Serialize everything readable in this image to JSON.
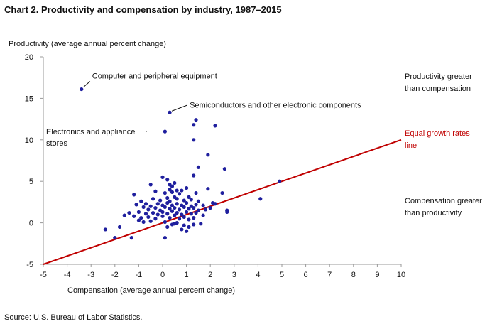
{
  "title": "Chart 2. Productivity and compensation by industry, 1987–2015",
  "source": "Source: U.S. Bureau of Labor Statistics.",
  "colors": {
    "points": "#1f1f9e",
    "line": "#c00000",
    "axis": "#999999",
    "text": "#111111"
  },
  "chart_data": {
    "type": "scatter",
    "title": "Chart 2. Productivity and compensation by industry, 1987–2015",
    "xlabel": "Compensation (average annual percent change)",
    "ylabel": "Productivity (average annual percent change)",
    "xlim": [
      -5,
      10
    ],
    "ylim": [
      -5,
      20
    ],
    "xticks": [
      -5,
      -4,
      -3,
      -2,
      -1,
      0,
      1,
      2,
      3,
      4,
      5,
      6,
      7,
      8,
      9,
      10
    ],
    "yticks": [
      -5,
      0,
      5,
      10,
      15,
      20
    ],
    "grid": false,
    "reference_line": {
      "from": [
        -5,
        -5
      ],
      "to": [
        10,
        10
      ]
    },
    "annotations": [
      {
        "text": "Computer  and peripheral equipment",
        "point": [
          -3.4,
          16.1
        ]
      },
      {
        "text": "Semiconductors and other electronic components",
        "point": [
          0.3,
          13.3
        ]
      },
      {
        "text": "Electronics and appliance",
        "point": [
          0.1,
          11.0
        ]
      },
      {
        "text": "stores",
        "point": [
          0.1,
          11.0
        ]
      }
    ],
    "side_labels": {
      "upper": [
        "Productivity greater",
        "than compensation"
      ],
      "line": [
        "Equal growth rates",
        "line"
      ],
      "lower": [
        "Compensation greater",
        "than productivity"
      ]
    },
    "series": [
      {
        "points": [
          [
            -3.4,
            16.1
          ],
          [
            0.3,
            13.3
          ],
          [
            0.1,
            11.0
          ],
          [
            1.4,
            12.4
          ],
          [
            1.3,
            11.8
          ],
          [
            2.2,
            11.7
          ],
          [
            1.3,
            10.0
          ],
          [
            1.9,
            8.2
          ],
          [
            2.6,
            6.5
          ],
          [
            1.5,
            6.7
          ],
          [
            1.3,
            5.7
          ],
          [
            4.9,
            5.0
          ],
          [
            0.0,
            5.5
          ],
          [
            0.2,
            5.2
          ],
          [
            0.3,
            4.6
          ],
          [
            0.4,
            4.4
          ],
          [
            0.5,
            4.8
          ],
          [
            -0.5,
            4.6
          ],
          [
            0.6,
            3.9
          ],
          [
            0.3,
            4.0
          ],
          [
            1.0,
            4.2
          ],
          [
            1.9,
            4.1
          ],
          [
            2.5,
            3.6
          ],
          [
            4.1,
            2.9
          ],
          [
            -1.2,
            3.4
          ],
          [
            -0.3,
            3.8
          ],
          [
            0.1,
            3.6
          ],
          [
            0.4,
            3.7
          ],
          [
            0.7,
            3.5
          ],
          [
            0.8,
            3.9
          ],
          [
            1.1,
            3.1
          ],
          [
            1.4,
            3.6
          ],
          [
            0.2,
            3.0
          ],
          [
            0.5,
            3.1
          ],
          [
            -0.4,
            2.9
          ],
          [
            -0.9,
            2.6
          ],
          [
            -0.1,
            2.7
          ],
          [
            0.3,
            2.6
          ],
          [
            0.6,
            2.9
          ],
          [
            0.9,
            2.7
          ],
          [
            1.2,
            2.8
          ],
          [
            1.5,
            2.6
          ],
          [
            -1.1,
            2.2
          ],
          [
            -0.7,
            2.3
          ],
          [
            -0.5,
            2.0
          ],
          [
            -0.2,
            2.3
          ],
          [
            0.0,
            2.1
          ],
          [
            0.2,
            2.4
          ],
          [
            0.4,
            2.1
          ],
          [
            0.6,
            2.3
          ],
          [
            0.8,
            2.1
          ],
          [
            1.0,
            2.4
          ],
          [
            1.2,
            2.0
          ],
          [
            1.4,
            2.2
          ],
          [
            1.7,
            2.1
          ],
          [
            2.1,
            2.4
          ],
          [
            2.2,
            2.3
          ],
          [
            -0.8,
            1.9
          ],
          [
            -0.6,
            1.6
          ],
          [
            -0.3,
            1.8
          ],
          [
            -0.1,
            1.5
          ],
          [
            0.1,
            1.9
          ],
          [
            0.3,
            1.7
          ],
          [
            0.5,
            1.8
          ],
          [
            0.7,
            1.6
          ],
          [
            0.9,
            1.9
          ],
          [
            1.1,
            1.7
          ],
          [
            1.3,
            1.8
          ],
          [
            1.5,
            1.5
          ],
          [
            1.8,
            1.6
          ],
          [
            2.0,
            1.8
          ],
          [
            -1.4,
            1.2
          ],
          [
            -1.0,
            1.3
          ],
          [
            -0.7,
            1.1
          ],
          [
            -0.4,
            1.2
          ],
          [
            -0.2,
            1.0
          ],
          [
            0.0,
            1.3
          ],
          [
            0.2,
            1.1
          ],
          [
            0.4,
            1.4
          ],
          [
            0.6,
            1.2
          ],
          [
            0.8,
            1.0
          ],
          [
            1.0,
            1.3
          ],
          [
            1.2,
            1.1
          ],
          [
            1.4,
            1.2
          ],
          [
            1.7,
            0.9
          ],
          [
            2.7,
            1.3
          ],
          [
            2.7,
            1.5
          ],
          [
            -1.6,
            0.9
          ],
          [
            -1.2,
            0.8
          ],
          [
            -0.9,
            0.6
          ],
          [
            -0.6,
            0.7
          ],
          [
            -0.3,
            0.5
          ],
          [
            0.0,
            0.8
          ],
          [
            0.3,
            0.6
          ],
          [
            0.5,
            0.9
          ],
          [
            0.7,
            0.5
          ],
          [
            0.9,
            0.7
          ],
          [
            1.1,
            0.4
          ],
          [
            1.3,
            0.6
          ],
          [
            -1.0,
            0.3
          ],
          [
            -0.5,
            0.2
          ],
          [
            0.1,
            0.1
          ],
          [
            0.4,
            -0.2
          ],
          [
            0.6,
            0.0
          ],
          [
            0.9,
            -0.3
          ],
          [
            1.1,
            -0.5
          ],
          [
            1.3,
            -0.2
          ],
          [
            0.2,
            -0.5
          ],
          [
            0.8,
            -0.8
          ],
          [
            1.0,
            -1.0
          ],
          [
            0.1,
            -1.8
          ],
          [
            -1.3,
            -1.8
          ],
          [
            -2.0,
            -1.8
          ],
          [
            -2.4,
            -0.8
          ],
          [
            -1.8,
            -0.5
          ],
          [
            0.5,
            -0.1
          ],
          [
            1.6,
            -0.1
          ],
          [
            -0.8,
            0.1
          ]
        ]
      }
    ]
  }
}
